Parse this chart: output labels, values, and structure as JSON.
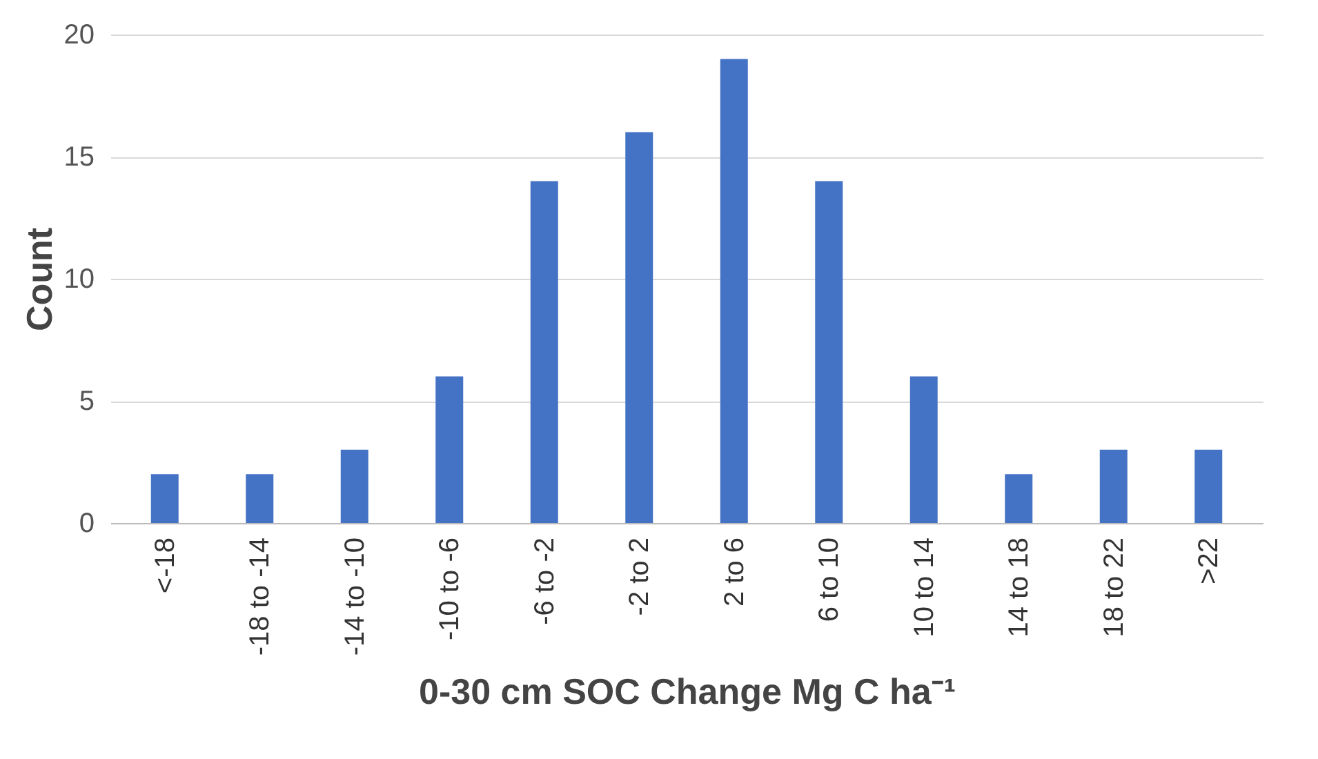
{
  "chart_data": {
    "type": "bar",
    "xlabel": "0-30 cm SOC  Change Mg C ha⁻¹",
    "ylabel": "Count",
    "categories": [
      "<-18",
      "-18 to -14",
      "-14 to -10",
      "-10 to -6",
      "-6 to -2",
      "-2 to 2",
      "2 to 6",
      "6 to 10",
      "10 to 14",
      "14 to 18",
      "18 to 22",
      ">22"
    ],
    "values": [
      2,
      2,
      3,
      6,
      14,
      16,
      19,
      14,
      6,
      2,
      3,
      3
    ],
    "color": "#4472c4",
    "ylim": [
      0,
      20
    ],
    "yticks": [
      0,
      5,
      10,
      15,
      20
    ],
    "grid": "y"
  }
}
